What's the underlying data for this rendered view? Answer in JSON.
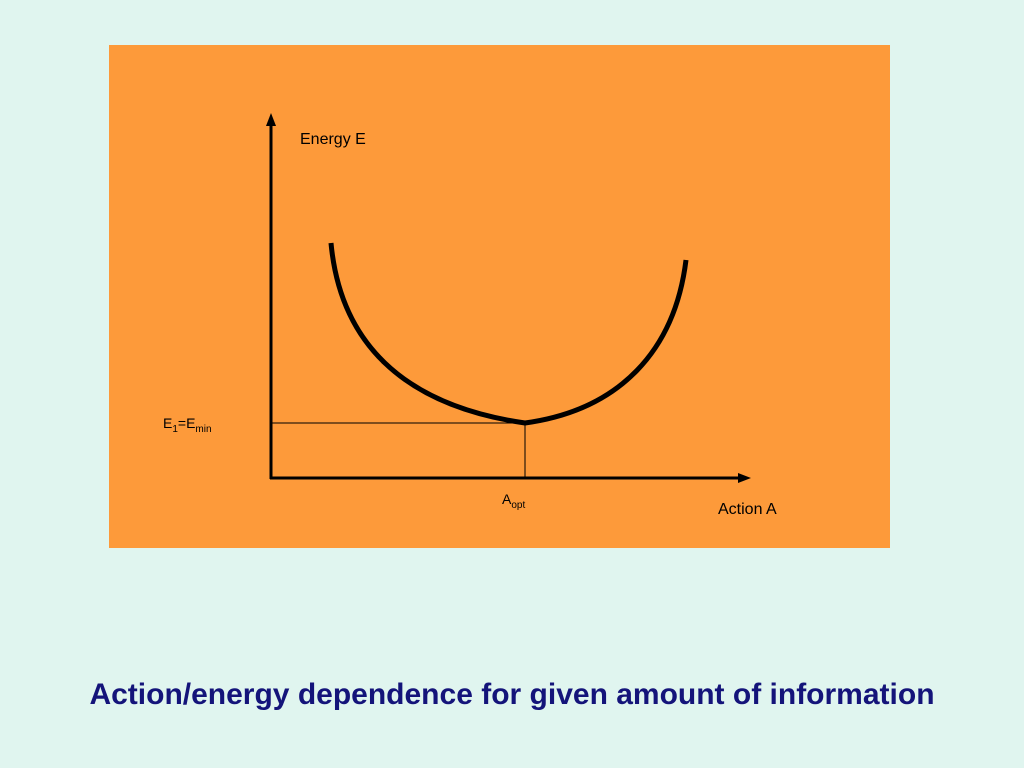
{
  "diagram": {
    "y_axis_label": "Energy E",
    "x_axis_label": "Action A",
    "e_min_label": {
      "parts": [
        "E",
        "1",
        "=E",
        "min"
      ]
    },
    "a_opt_label": {
      "parts": [
        "A",
        "opt"
      ]
    }
  },
  "caption": "Action/energy dependence for given amount of information"
}
